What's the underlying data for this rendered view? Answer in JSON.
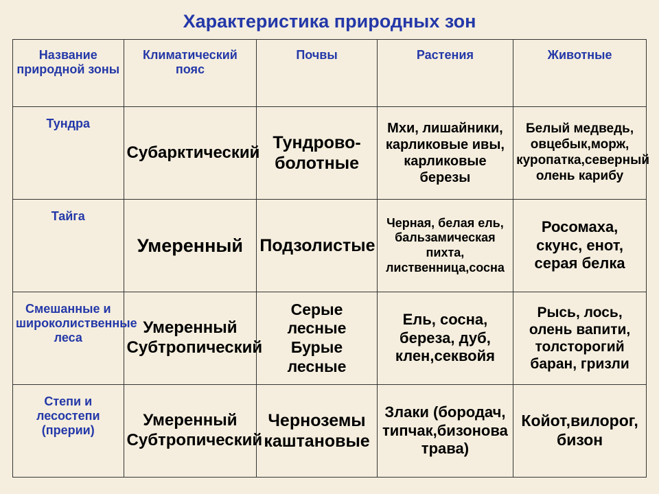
{
  "title": "Характеристика природных зон",
  "columns": [
    "Название природной зоны",
    "Климатический пояс",
    "Почвы",
    "Растения",
    "Животные"
  ],
  "rows": [
    {
      "name": "Тундра",
      "climate": {
        "text": "Субарктический",
        "fs": "fs24"
      },
      "soil": {
        "text": "Тундрово-\nболотные",
        "fs": "fs25"
      },
      "plants": {
        "text": "Мхи, лишайники,\nкарликовые ивы,\nкарликовые березы",
        "fs": "fs20"
      },
      "animals": {
        "text": "Белый медведь,\nовцебык,морж,\nкуропатка,северный\nолень карибу",
        "fs": "fs19"
      }
    },
    {
      "name": "Тайга",
      "climate": {
        "text": "Умеренный",
        "fs": "fs27"
      },
      "soil": {
        "text": "Подзолистые",
        "fs": "fs25"
      },
      "plants": {
        "text": "Черная, белая ель,\nбальзамическая пихта,\nлиственница,сосна",
        "fs": "fs18"
      },
      "animals": {
        "text": "Росомаха,\nскунс, енот,\nсерая белка",
        "fs": "fs22"
      }
    },
    {
      "name": "Смешанные и широколиственные леса",
      "climate": {
        "text": "Умеренный\nСубтропический",
        "fs": "fs24"
      },
      "soil": {
        "text": "Серые лесные\nБурые лесные",
        "fs": "fs23"
      },
      "plants": {
        "text": "Ель, сосна,\nбереза, дуб,\nклен,секвойя",
        "fs": "fs22"
      },
      "animals": {
        "text": "Рысь, лось,\nолень вапити,\nтолсторогий\nбаран, гризли",
        "fs": "fs21"
      }
    },
    {
      "name": "Степи и лесостепи (прерии)",
      "climate": {
        "text": "Умеренный\nСубтропический",
        "fs": "fs24"
      },
      "soil": {
        "text": "Черноземы\nкаштановые",
        "fs": "fs25"
      },
      "plants": {
        "text": "Злаки (бородач,\nтипчак,бизонова\nтрава)",
        "fs": "fs22"
      },
      "animals": {
        "text": "Койот,вилорог,\nбизон",
        "fs": "fs23"
      }
    }
  ]
}
